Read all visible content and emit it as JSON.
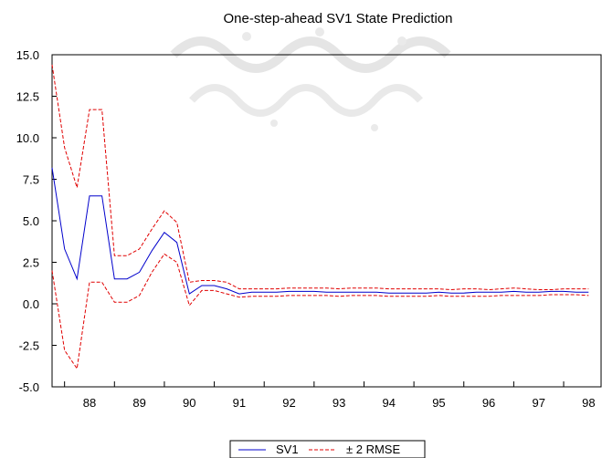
{
  "chart_data": {
    "type": "line",
    "title": "One-step-ahead SV1 State Prediction",
    "xlabel": "",
    "ylabel": "",
    "x_tick_labels": [
      "88",
      "89",
      "90",
      "91",
      "92",
      "93",
      "94",
      "95",
      "96",
      "97",
      "98"
    ],
    "x_period_start": 1987.75,
    "x_period_step": 0.25,
    "xlim": [
      1987.75,
      1998.75
    ],
    "ylim": [
      -5.0,
      15.0
    ],
    "y_ticks": [
      "15.0",
      "12.5",
      "10.0",
      "7.5",
      "5.0",
      "2.5",
      "0.0",
      "-2.5",
      "-5.0"
    ],
    "grid": false,
    "legend_position": "bottom-center",
    "colors": {
      "sv1": "#0000cc",
      "rmse": "#e00000"
    },
    "series": [
      {
        "name": "SV1",
        "style": "solid",
        "values": [
          8.2,
          3.3,
          1.5,
          6.5,
          6.5,
          1.5,
          1.5,
          1.9,
          3.2,
          4.3,
          3.7,
          0.6,
          1.1,
          1.1,
          0.9,
          0.6,
          0.7,
          0.7,
          0.7,
          0.75,
          0.75,
          0.75,
          0.7,
          0.7,
          0.7,
          0.7,
          0.7,
          0.65,
          0.65,
          0.65,
          0.65,
          0.7,
          0.65,
          0.65,
          0.7,
          0.7,
          0.7,
          0.75,
          0.7,
          0.7,
          0.75,
          0.75,
          0.7,
          0.7
        ]
      },
      {
        "name": "± 2 RMSE",
        "style": "dashed",
        "values": [
          14.4,
          9.4,
          7.0,
          11.7,
          11.7,
          2.9,
          2.9,
          3.3,
          4.5,
          5.6,
          4.9,
          1.3,
          1.4,
          1.4,
          1.3,
          0.9,
          0.9,
          0.9,
          0.9,
          0.95,
          0.95,
          0.95,
          0.95,
          0.9,
          0.95,
          0.95,
          0.95,
          0.9,
          0.9,
          0.9,
          0.9,
          0.9,
          0.85,
          0.9,
          0.9,
          0.85,
          0.9,
          0.95,
          0.9,
          0.85,
          0.85,
          0.9,
          0.9,
          0.9
        ]
      },
      {
        "name": "± 2 RMSE",
        "style": "dashed",
        "values": [
          2.0,
          -2.8,
          -3.9,
          1.3,
          1.3,
          0.1,
          0.1,
          0.5,
          1.9,
          3.0,
          2.5,
          -0.1,
          0.8,
          0.8,
          0.6,
          0.4,
          0.45,
          0.45,
          0.45,
          0.5,
          0.5,
          0.5,
          0.5,
          0.45,
          0.5,
          0.5,
          0.5,
          0.45,
          0.45,
          0.45,
          0.45,
          0.5,
          0.45,
          0.45,
          0.45,
          0.45,
          0.5,
          0.5,
          0.5,
          0.5,
          0.55,
          0.55,
          0.55,
          0.5
        ]
      }
    ]
  }
}
